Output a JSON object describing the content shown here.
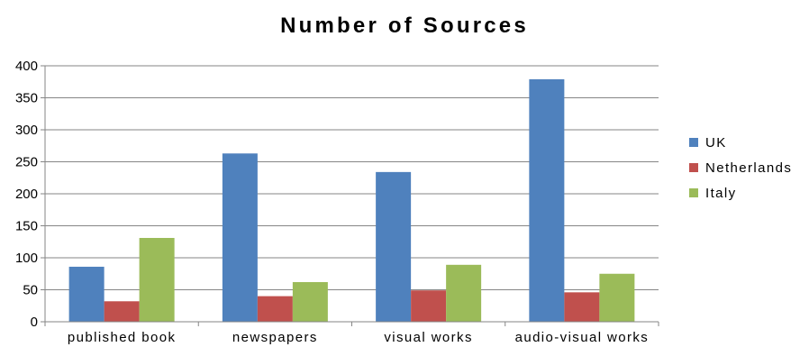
{
  "chart_data": {
    "type": "bar",
    "title": "Number of Sources",
    "xlabel": "",
    "ylabel": "",
    "categories": [
      "published book",
      "newspapers",
      "visual works",
      "audio-visual works"
    ],
    "series": [
      {
        "name": "UK",
        "color": "#4F81BD",
        "values": [
          86,
          263,
          234,
          379
        ]
      },
      {
        "name": "Netherlands",
        "color": "#C0504D",
        "values": [
          32,
          40,
          49,
          46
        ]
      },
      {
        "name": "Italy",
        "color": "#9BBB59",
        "values": [
          131,
          62,
          89,
          75
        ]
      }
    ],
    "ylim": [
      0,
      400
    ],
    "yticks": [
      0,
      50,
      100,
      150,
      200,
      250,
      300,
      350,
      400
    ],
    "grid": true,
    "legend_position": "right"
  }
}
